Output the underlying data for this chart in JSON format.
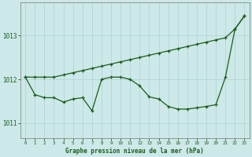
{
  "title": "Graphe pression niveau de la mer (hPa)",
  "bg_color": "#cce8e8",
  "line_color": "#1a5c1a",
  "grid_color": "#b8d8d8",
  "xlim": [
    -0.5,
    23.5
  ],
  "ylim": [
    1010.65,
    1013.75
  ],
  "yticks": [
    1011,
    1012,
    1013
  ],
  "xticks": [
    0,
    1,
    2,
    3,
    4,
    5,
    6,
    7,
    8,
    9,
    10,
    11,
    12,
    13,
    14,
    15,
    16,
    17,
    18,
    19,
    20,
    21,
    22,
    23
  ],
  "series1_x": [
    0,
    1,
    2,
    3,
    4,
    5,
    6,
    7,
    8,
    9,
    10,
    11,
    12,
    13,
    14,
    15,
    16,
    17,
    18,
    19,
    20,
    21,
    22,
    23
  ],
  "series1_y": [
    1012.05,
    1012.05,
    1012.05,
    1012.05,
    1012.1,
    1012.15,
    1012.2,
    1012.25,
    1012.3,
    1012.35,
    1012.4,
    1012.45,
    1012.5,
    1012.55,
    1012.6,
    1012.65,
    1012.7,
    1012.75,
    1012.8,
    1012.85,
    1012.9,
    1012.95,
    1013.15,
    1013.45
  ],
  "series2_x": [
    0,
    1,
    2,
    3,
    4,
    5,
    6,
    7,
    8,
    9,
    10,
    11,
    12,
    13,
    14,
    15,
    16,
    17,
    18,
    19,
    20,
    21,
    22,
    23
  ],
  "series2_y": [
    1012.05,
    1011.65,
    1011.58,
    1011.58,
    1011.48,
    1011.55,
    1011.58,
    1011.28,
    1012.0,
    1012.05,
    1012.05,
    1012.0,
    1011.85,
    1011.6,
    1011.55,
    1011.38,
    1011.32,
    1011.32,
    1011.35,
    1011.38,
    1011.42,
    1012.05,
    1013.15,
    1013.45
  ]
}
